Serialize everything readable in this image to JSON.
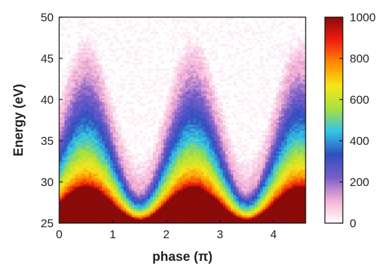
{
  "chart_data": {
    "type": "heatmap",
    "xlabel": "phase (π)",
    "ylabel": "Energy (eV)",
    "xlim": [
      0,
      4.6
    ],
    "ylim": [
      25,
      50
    ],
    "x_ticks": [
      "0",
      "1",
      "2",
      "3",
      "4"
    ],
    "y_ticks": [
      "25",
      "30",
      "35",
      "40",
      "45",
      "50"
    ],
    "colorbar": {
      "range": [
        0,
        1000
      ],
      "ticks": [
        "0",
        "200",
        "400",
        "600",
        "800",
        "1000"
      ],
      "colormap": [
        "#ffffff",
        "#f4b0d4",
        "#7a5cc8",
        "#2f4fc0",
        "#31c4e6",
        "#a8e040",
        "#f7e61a",
        "#ff8a00",
        "#ef1c10",
        "#8b0a0a"
      ]
    },
    "features": {
      "description": "Oscillating intensity bands vs. phase; low-energy edge is high intensity (dark red), decaying upward through yellow/green/blue to pink/white.",
      "cutoff_maxima_phase": [
        0.5,
        2.5,
        4.5
      ],
      "cutoff_minima_phase": [
        1.4,
        3.4
      ],
      "cutoff_max_energy_eV": 44,
      "cutoff_min_energy_eV": 29,
      "red_band_top_eV": [
        29.5,
        25.5
      ]
    }
  }
}
